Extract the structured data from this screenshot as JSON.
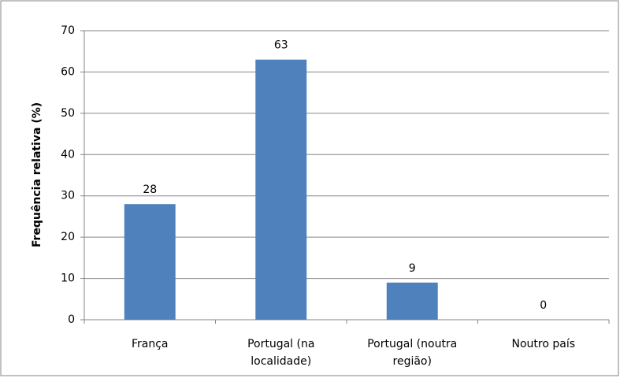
{
  "chart_data": {
    "type": "bar",
    "ylabel": "Frequência relativa (%)",
    "categories": [
      "França",
      "Portugal (na localidade)",
      "Portugal (noutra região)",
      "Noutro país"
    ],
    "values": [
      28,
      63,
      9,
      0
    ],
    "color": "#4f81bd",
    "ylim": [
      0,
      70
    ],
    "yticks": [
      0,
      10,
      20,
      30,
      40,
      50,
      60,
      70
    ],
    "grid": true
  }
}
